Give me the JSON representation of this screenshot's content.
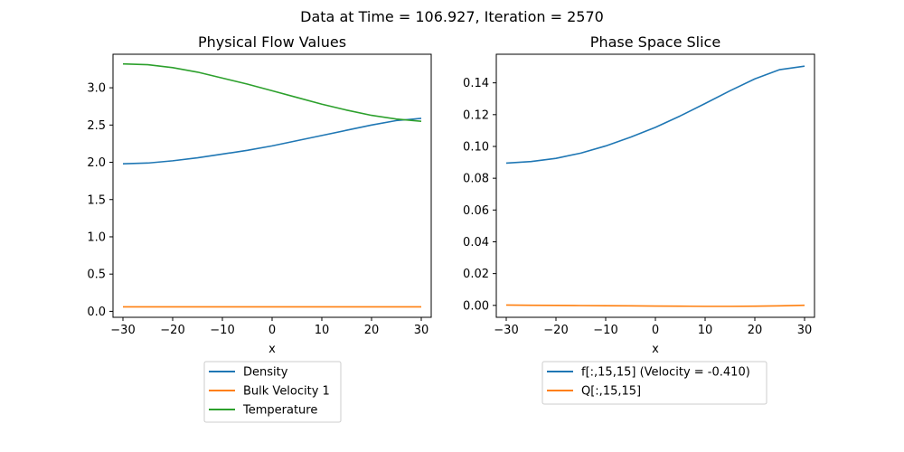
{
  "figure": {
    "suptitle": "Data at Time = 106.927, Iteration = 2570"
  },
  "chart_data": [
    {
      "type": "line",
      "title": "Physical Flow Values",
      "xlabel": "x",
      "ylabel": "",
      "xlim": [
        -32,
        32
      ],
      "ylim": [
        -0.08,
        3.45
      ],
      "xticks": [
        -30,
        -20,
        -10,
        0,
        10,
        20,
        30
      ],
      "xtick_labels": [
        "−30",
        "−20",
        "−10",
        "0",
        "10",
        "20",
        "30"
      ],
      "yticks": [
        0.0,
        0.5,
        1.0,
        1.5,
        2.0,
        2.5,
        3.0
      ],
      "ytick_labels": [
        "0.0",
        "0.5",
        "1.0",
        "1.5",
        "2.0",
        "2.5",
        "3.0"
      ],
      "grid": false,
      "legend_position": "below",
      "x": [
        -30,
        -25,
        -20,
        -15,
        -10,
        -5,
        0,
        5,
        10,
        15,
        20,
        25,
        30
      ],
      "series": [
        {
          "name": "Density",
          "color": "#1f77b4",
          "values": [
            1.98,
            1.99,
            2.02,
            2.06,
            2.11,
            2.16,
            2.22,
            2.29,
            2.36,
            2.43,
            2.5,
            2.56,
            2.59
          ]
        },
        {
          "name": "Bulk Velocity 1",
          "color": "#ff7f0e",
          "values": [
            0.06,
            0.06,
            0.06,
            0.06,
            0.06,
            0.06,
            0.06,
            0.06,
            0.06,
            0.06,
            0.06,
            0.06,
            0.06
          ]
        },
        {
          "name": "Temperature",
          "color": "#2ca02c",
          "values": [
            3.32,
            3.31,
            3.27,
            3.21,
            3.13,
            3.05,
            2.96,
            2.87,
            2.78,
            2.7,
            2.63,
            2.58,
            2.55
          ]
        }
      ]
    },
    {
      "type": "line",
      "title": "Phase Space Slice",
      "xlabel": "x",
      "ylabel": "",
      "xlim": [
        -32,
        32
      ],
      "ylim": [
        -0.0075,
        0.158
      ],
      "xticks": [
        -30,
        -20,
        -10,
        0,
        10,
        20,
        30
      ],
      "xtick_labels": [
        "−30",
        "−20",
        "−10",
        "0",
        "10",
        "20",
        "30"
      ],
      "yticks": [
        0.0,
        0.02,
        0.04,
        0.06,
        0.08,
        0.1,
        0.12,
        0.14
      ],
      "ytick_labels": [
        "0.00",
        "0.02",
        "0.04",
        "0.06",
        "0.08",
        "0.10",
        "0.12",
        "0.14"
      ],
      "grid": false,
      "legend_position": "below",
      "x": [
        -30,
        -25,
        -20,
        -15,
        -10,
        -5,
        0,
        5,
        10,
        15,
        20,
        25,
        30
      ],
      "series": [
        {
          "name": "f[:,15,15] (Velocity = -0.410)",
          "color": "#1f77b4",
          "values": [
            0.0895,
            0.0905,
            0.0925,
            0.0958,
            0.1003,
            0.1058,
            0.112,
            0.1192,
            0.127,
            0.135,
            0.1425,
            0.1483,
            0.1505
          ]
        },
        {
          "name": "Q[:,15,15]",
          "color": "#ff7f0e",
          "values": [
            0.0002,
            0.0001,
            0.0,
            -0.0001,
            -0.0002,
            -0.0003,
            -0.0004,
            -0.0005,
            -0.0006,
            -0.0006,
            -0.0005,
            -0.0003,
            0.0001
          ]
        }
      ]
    }
  ]
}
